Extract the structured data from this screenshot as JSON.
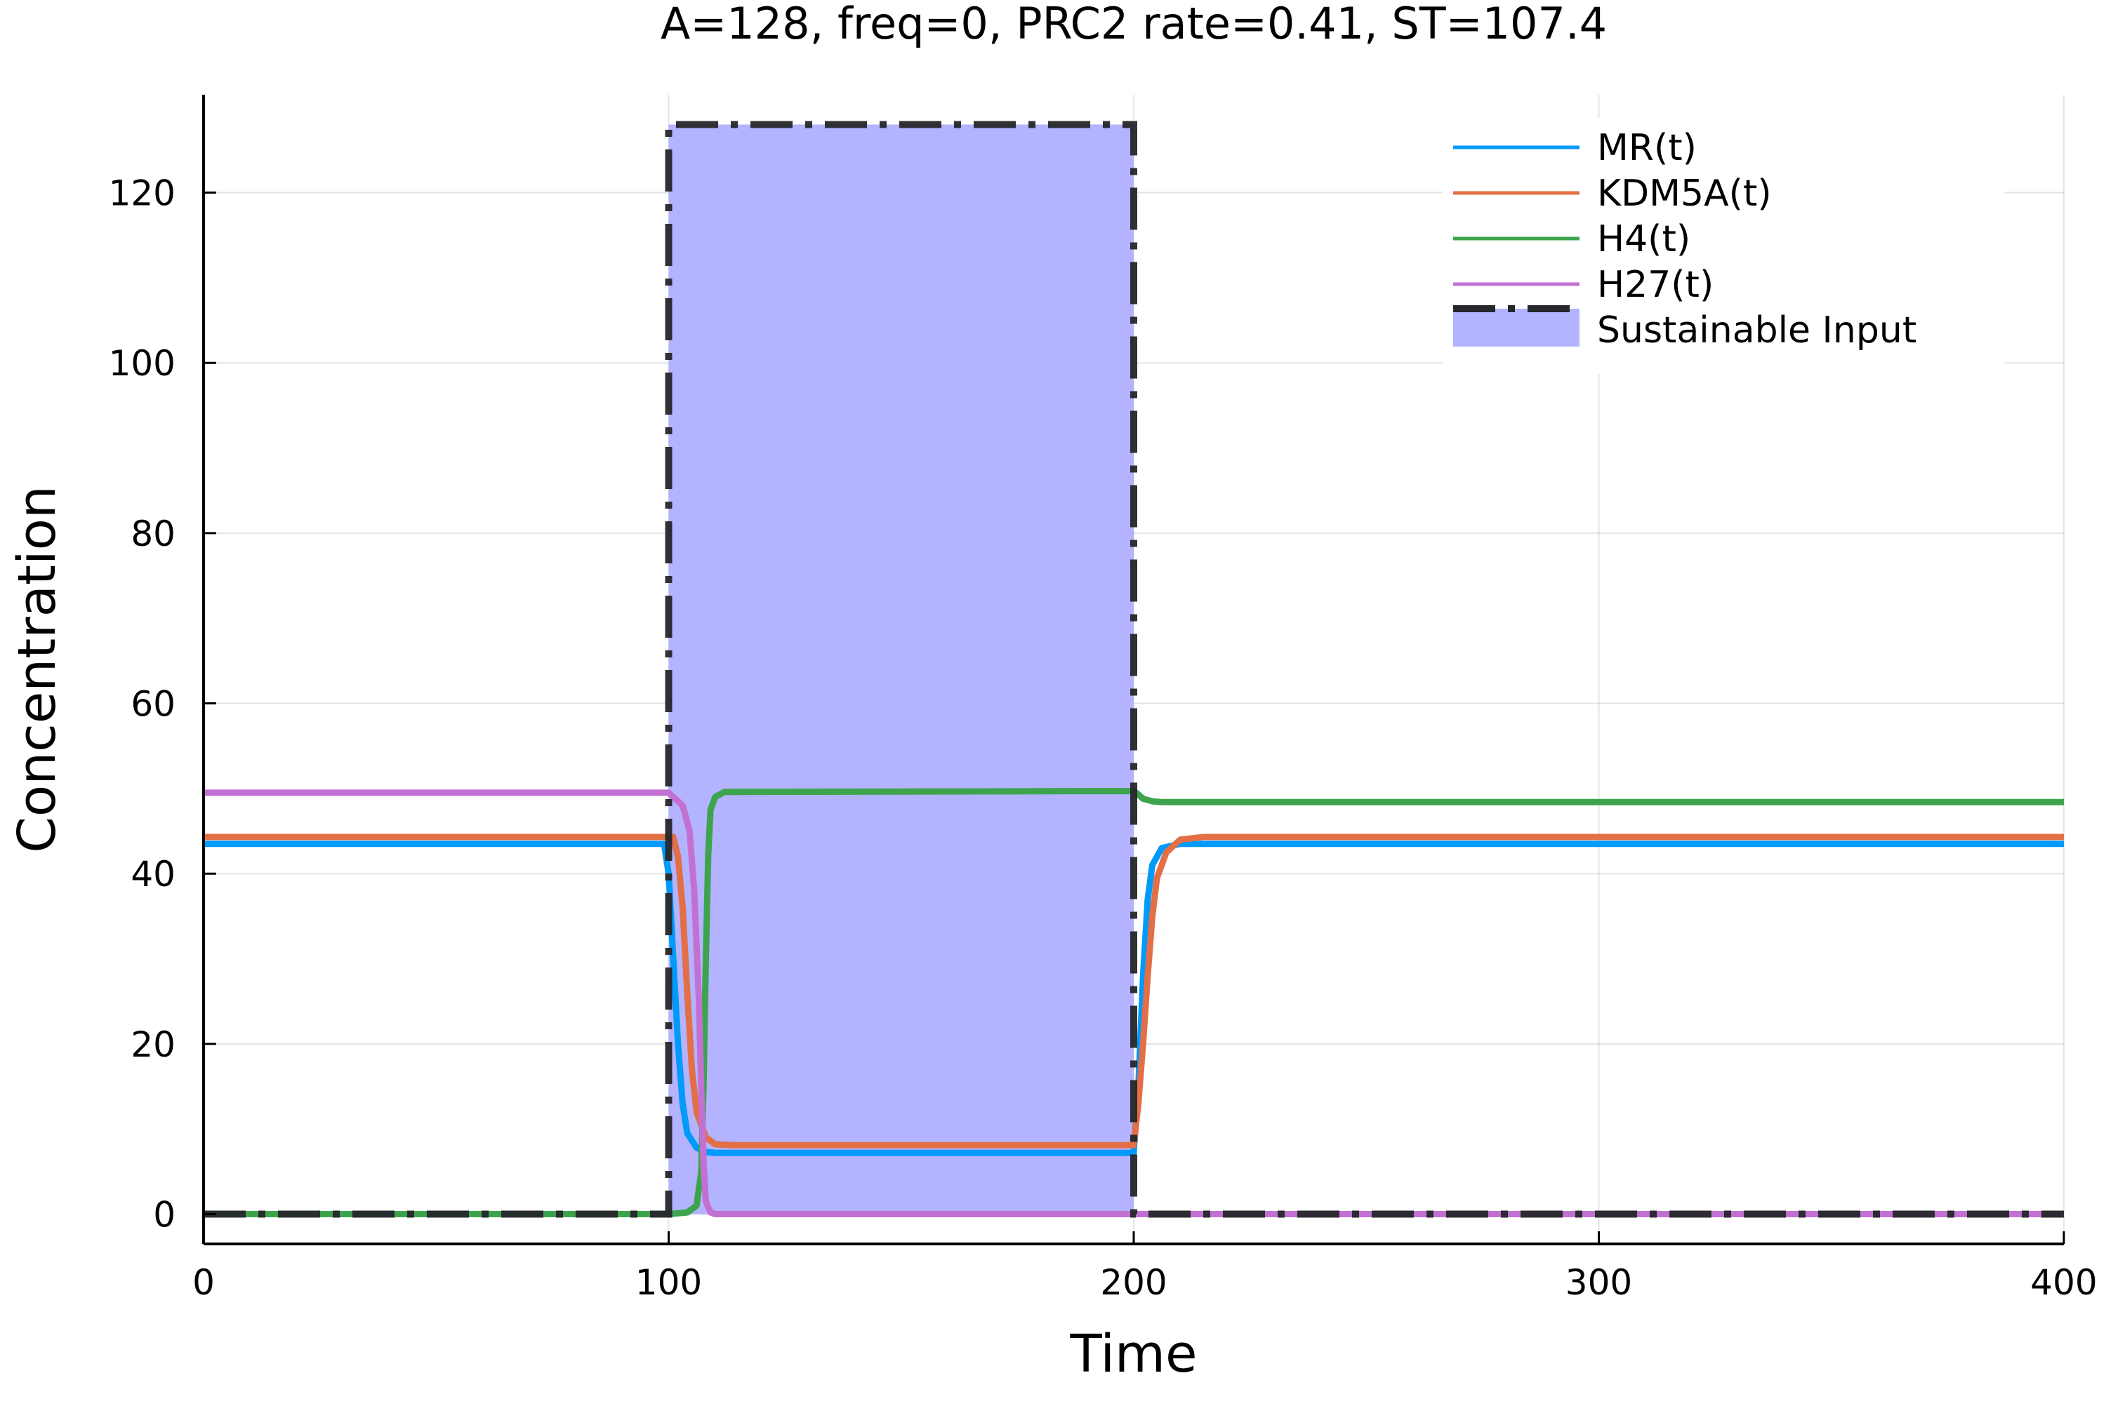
{
  "chart_data": {
    "type": "line",
    "title": "A=128, freq=0, PRC2 rate=0.41,  ST=107.4",
    "xlabel": "Time",
    "ylabel": "Concentration",
    "xlim": [
      0,
      400
    ],
    "ylim": [
      -3.5,
      131.5
    ],
    "x_ticks": [
      0,
      100,
      200,
      300,
      400
    ],
    "y_ticks": [
      0,
      20,
      40,
      60,
      80,
      100,
      120
    ],
    "grid": true,
    "legend_position": "top-right",
    "series": [
      {
        "name": "MR(t)",
        "color": "#009AFA",
        "points": [
          [
            0,
            43.5
          ],
          [
            99,
            43.5
          ],
          [
            100,
            40
          ],
          [
            101,
            30
          ],
          [
            102,
            20
          ],
          [
            103,
            13
          ],
          [
            104,
            9.5
          ],
          [
            106,
            7.8
          ],
          [
            108,
            7.3
          ],
          [
            110,
            7.2
          ],
          [
            200,
            7.2
          ],
          [
            201,
            15
          ],
          [
            202,
            28
          ],
          [
            203,
            37
          ],
          [
            204,
            41
          ],
          [
            206,
            43
          ],
          [
            210,
            43.5
          ],
          [
            400,
            43.5
          ]
        ]
      },
      {
        "name": "KDM5A(t)",
        "color": "#E26F46",
        "points": [
          [
            0,
            44.3
          ],
          [
            101,
            44.3
          ],
          [
            102,
            42
          ],
          [
            103,
            36
          ],
          [
            104,
            26
          ],
          [
            105,
            17
          ],
          [
            106,
            12
          ],
          [
            108,
            9
          ],
          [
            110,
            8.2
          ],
          [
            114,
            8.1
          ],
          [
            200,
            8.1
          ],
          [
            201,
            13
          ],
          [
            202,
            20
          ],
          [
            203,
            28
          ],
          [
            204,
            35
          ],
          [
            205,
            39.5
          ],
          [
            207,
            42.5
          ],
          [
            210,
            44
          ],
          [
            215,
            44.3
          ],
          [
            400,
            44.3
          ]
        ]
      },
      {
        "name": "H4(t)",
        "color": "#3DA44D",
        "points": [
          [
            0,
            0
          ],
          [
            100,
            0
          ],
          [
            104,
            0.2
          ],
          [
            106,
            1
          ],
          [
            107,
            5
          ],
          [
            107.5,
            15
          ],
          [
            108,
            30
          ],
          [
            108.5,
            42
          ],
          [
            109,
            47.5
          ],
          [
            110,
            49
          ],
          [
            112,
            49.6
          ],
          [
            200,
            49.7
          ],
          [
            201,
            49.3
          ],
          [
            202,
            48.8
          ],
          [
            204,
            48.5
          ],
          [
            206,
            48.4
          ],
          [
            400,
            48.4
          ]
        ]
      },
      {
        "name": "H27(t)",
        "color": "#C271D2",
        "points": [
          [
            0,
            49.5
          ],
          [
            100,
            49.5
          ],
          [
            101,
            49
          ],
          [
            103,
            48
          ],
          [
            104.5,
            45
          ],
          [
            105.5,
            38
          ],
          [
            106.5,
            25
          ],
          [
            107,
            15
          ],
          [
            107.5,
            6
          ],
          [
            108,
            1.5
          ],
          [
            109,
            0.2
          ],
          [
            110,
            0
          ],
          [
            400,
            0
          ]
        ]
      },
      {
        "name": "Sustainable Input",
        "color": "#B3B3FF",
        "border_color": "#26262B",
        "points": [
          [
            0,
            0
          ],
          [
            100,
            0
          ],
          [
            100,
            128
          ],
          [
            200,
            128
          ],
          [
            200,
            0
          ],
          [
            400,
            0
          ]
        ]
      }
    ]
  }
}
